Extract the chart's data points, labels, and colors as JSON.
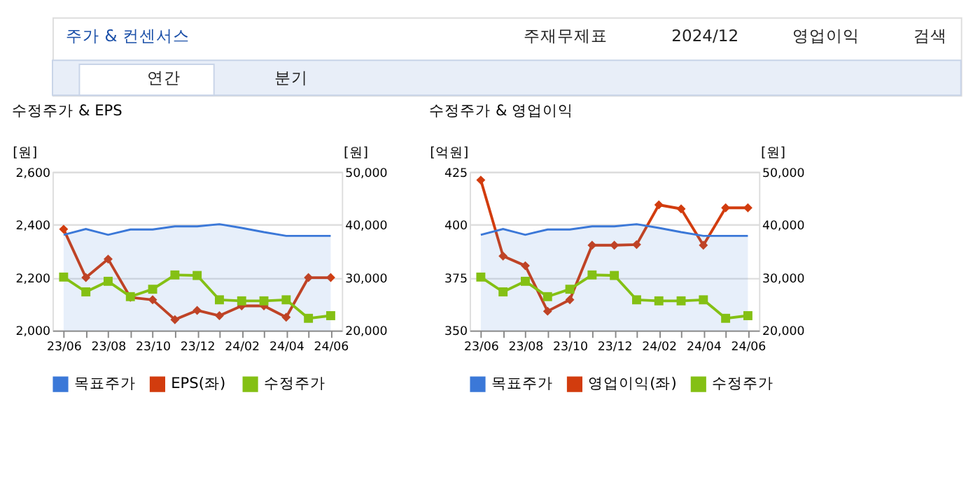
{
  "chart_data": [
    {
      "type": "other",
      "title": "주가 & 컨센서스",
      "annotations": [
        "주재무제표",
        "2024/12",
        "영업이익",
        "검색",
        "연간",
        "분기"
      ]
    },
    {
      "type": "line",
      "title": "수정주가 & EPS",
      "categories": [
        "23/06",
        null,
        "23/08",
        null,
        "23/10",
        null,
        "23/12",
        null,
        "24/02",
        null,
        "24/04",
        null,
        "24/06"
      ],
      "ylabel": "[원]",
      "y2label": "[원]",
      "ylim": [
        2000,
        2600
      ],
      "yticks": [
        {
          "value": 2000,
          "label": "2,000"
        },
        {
          "value": 2200,
          "label": "2,200"
        },
        {
          "value": 2400,
          "label": "2,400"
        },
        {
          "value": 2600,
          "label": "2,600"
        }
      ],
      "y2lim": [
        20000,
        50000
      ],
      "y2ticks": [
        {
          "value": 20000,
          "label": "20,000"
        },
        {
          "value": 30000,
          "label": "30,000"
        },
        {
          "value": 40000,
          "label": "40,000"
        },
        {
          "value": 50000,
          "label": "50,000"
        }
      ],
      "grid": "y",
      "legend": "bottom",
      "series": [
        {
          "name": "목표주가",
          "type": "area",
          "axis": "y2",
          "marker": "none",
          "color": "#3b78d8",
          "values": [
            38100,
            39200,
            38100,
            39100,
            39100,
            39700,
            39700,
            40100,
            39400,
            38600,
            37900,
            37900,
            37900
          ]
        },
        {
          "name": "EPS(좌)",
          "type": "line",
          "marker": "diamond",
          "color": "#d23c0e",
          "values": [
            2383,
            2200,
            2270,
            2125,
            2116,
            2041,
            2076,
            2056,
            2093,
            2093,
            2050,
            2200,
            2200
          ]
        },
        {
          "name": "수정주가",
          "type": "line",
          "axis": "y2",
          "marker": "square",
          "color": "#84c014",
          "values": [
            30100,
            27300,
            29300,
            26400,
            27800,
            30500,
            30400,
            25800,
            25600,
            25600,
            25800,
            22300,
            22800
          ]
        }
      ]
    },
    {
      "type": "line",
      "title": "수정주가 & 영업이익",
      "categories": [
        "23/06",
        null,
        "23/08",
        null,
        "23/10",
        null,
        "23/12",
        null,
        "24/02",
        null,
        "24/04",
        null,
        "24/06"
      ],
      "ylabel": "[억원]",
      "y2label": "[원]",
      "ylim": [
        350,
        425
      ],
      "yticks": [
        350,
        375,
        400,
        425
      ],
      "y2lim": [
        20000,
        50000
      ],
      "y2ticks": [
        {
          "value": 20000,
          "label": "20,000"
        },
        {
          "value": 30000,
          "label": "30,000"
        },
        {
          "value": 40000,
          "label": "40,000"
        },
        {
          "value": 50000,
          "label": "50,000"
        }
      ],
      "grid": "y",
      "legend": "bottom",
      "series": [
        {
          "name": "목표주가",
          "type": "area",
          "axis": "y2",
          "marker": "none",
          "color": "#3b78d8",
          "values": [
            38100,
            39200,
            38100,
            39100,
            39100,
            39700,
            39700,
            40100,
            39400,
            38600,
            37900,
            37900,
            37900
          ]
        },
        {
          "name": "영업이익(좌)",
          "type": "line",
          "marker": "diamond",
          "color": "#d23c0e",
          "values": [
            421.1,
            385.2,
            380.6,
            359.1,
            364.5,
            390.3,
            390.3,
            390.6,
            409.4,
            407.5,
            390.3,
            408.0,
            408.0
          ]
        },
        {
          "name": "수정주가",
          "type": "line",
          "axis": "y2",
          "marker": "square",
          "color": "#84c014",
          "values": [
            30100,
            27300,
            29300,
            26400,
            27800,
            30500,
            30400,
            25800,
            25600,
            25600,
            25800,
            22300,
            22800
          ]
        }
      ]
    }
  ]
}
